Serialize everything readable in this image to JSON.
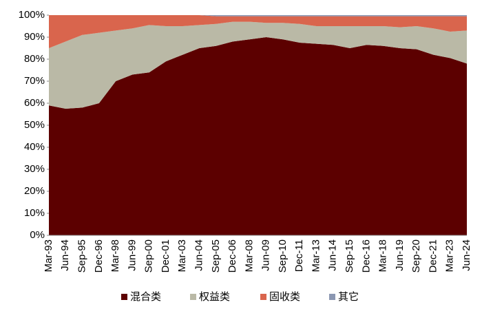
{
  "chart_data": {
    "type": "stacked_area",
    "categories": [
      "Mar-93",
      "Jun-94",
      "Sep-95",
      "Dec-96",
      "Mar-98",
      "Jun-99",
      "Sep-00",
      "Dec-01",
      "Mar-03",
      "Jun-04",
      "Sep-05",
      "Dec-06",
      "Mar-08",
      "Jun-09",
      "Sep-10",
      "Dec-11",
      "Mar-13",
      "Jun-14",
      "Sep-15",
      "Dec-16",
      "Mar-18",
      "Jun-19",
      "Sep-20",
      "Dec-21",
      "Mar-23",
      "Jun-24"
    ],
    "series": [
      {
        "name": "混合类",
        "color": "#5c0000",
        "values": [
          59,
          57.5,
          58,
          60,
          70,
          73,
          74,
          79,
          82,
          85,
          86,
          88,
          89,
          90,
          89,
          87.5,
          87,
          86.5,
          85,
          86.5,
          86,
          85,
          84.5,
          82,
          80.5,
          78
        ]
      },
      {
        "name": "权益类",
        "color": "#bab9a6",
        "values": [
          26,
          30.5,
          33,
          32,
          23,
          21,
          21.5,
          16,
          13,
          10.5,
          10,
          9,
          8,
          6.5,
          7.5,
          8.5,
          8,
          8.5,
          10,
          8.5,
          9,
          9.5,
          10.5,
          12,
          12,
          15
        ]
      },
      {
        "name": "固收类",
        "color": "#d9654d",
        "values": [
          15,
          12,
          9,
          8,
          7,
          6,
          4.5,
          5,
          5,
          4.5,
          3.5,
          2.5,
          2.5,
          3,
          3,
          3.5,
          4.5,
          4.5,
          4.5,
          4.5,
          4.5,
          5,
          4.5,
          5.5,
          7,
          6.5
        ]
      },
      {
        "name": "其它",
        "color": "#8b97b2",
        "values": [
          0,
          0,
          0,
          0,
          0,
          0,
          0,
          0,
          0,
          0,
          0.5,
          0.5,
          0.5,
          0.5,
          0.5,
          0.5,
          0.5,
          0.5,
          0.5,
          0.5,
          0.5,
          0.5,
          0.5,
          0.5,
          0.5,
          0.5
        ]
      }
    ],
    "ylim": [
      0,
      100
    ],
    "yticks": [
      {
        "value": 0,
        "label": "0%"
      },
      {
        "value": 10,
        "label": "10%"
      },
      {
        "value": 20,
        "label": "20%"
      },
      {
        "value": 30,
        "label": "30%"
      },
      {
        "value": 40,
        "label": "40%"
      },
      {
        "value": 50,
        "label": "50%"
      },
      {
        "value": 60,
        "label": "60%"
      },
      {
        "value": 70,
        "label": "70%"
      },
      {
        "value": 80,
        "label": "80%"
      },
      {
        "value": 90,
        "label": "90%"
      },
      {
        "value": 100,
        "label": "100%"
      }
    ],
    "legend": "bottom"
  }
}
